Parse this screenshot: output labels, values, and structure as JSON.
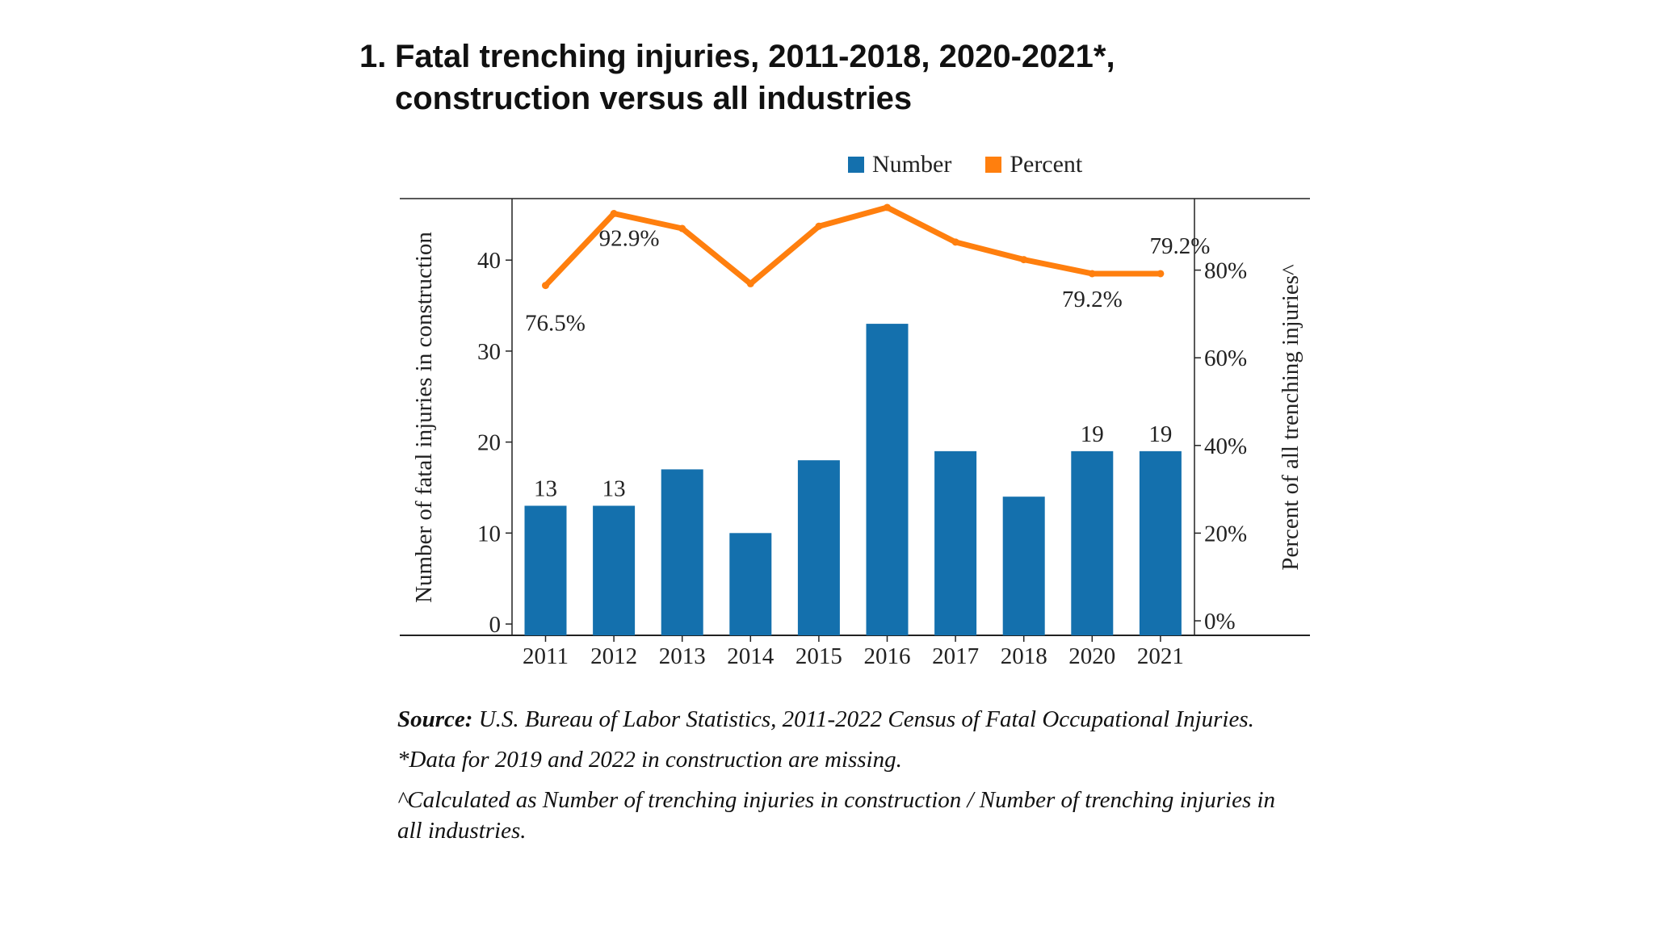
{
  "title": {
    "number": "1.",
    "line1": "Fatal trenching injuries, 2011-2018, 2020-2021*,",
    "line2": "construction versus all industries"
  },
  "legend": [
    {
      "label": "Number",
      "color": "#1470ad"
    },
    {
      "label": "Percent",
      "color": "#ff7f0e"
    }
  ],
  "chart_data": {
    "type": "bar",
    "categories": [
      "2011",
      "2012",
      "2013",
      "2014",
      "2015",
      "2016",
      "2017",
      "2018",
      "2020",
      "2021"
    ],
    "series": [
      {
        "name": "Number",
        "type": "bar",
        "axis": "left",
        "color": "#1470ad",
        "values": [
          13,
          13,
          17,
          10,
          18,
          33,
          19,
          14,
          19,
          19
        ]
      },
      {
        "name": "Percent",
        "type": "line",
        "axis": "right",
        "color": "#ff7f0e",
        "values": [
          76.5,
          92.9,
          89.5,
          76.9,
          90.0,
          94.3,
          86.4,
          82.4,
          79.2,
          79.2
        ]
      }
    ],
    "data_labels": {
      "bar": [
        {
          "index": 0,
          "text": "13"
        },
        {
          "index": 1,
          "text": "13"
        },
        {
          "index": 8,
          "text": "19"
        },
        {
          "index": 9,
          "text": "19"
        }
      ],
      "line": [
        {
          "index": 0,
          "text": "76.5%"
        },
        {
          "index": 1,
          "text": "92.9%"
        },
        {
          "index": 8,
          "text": "79.2%"
        },
        {
          "index": 9,
          "text": "79.2%"
        }
      ]
    },
    "ylabel": "Number of fatal injuries in construction",
    "y2label": "Percent of all trenching injuries^",
    "ylim": [
      0,
      48
    ],
    "y2lim": [
      0,
      100
    ],
    "yticks": [
      0,
      10,
      20,
      30,
      40
    ],
    "ytick_labels": [
      "0",
      "10",
      "20",
      "30",
      "40"
    ],
    "y2ticks": [
      0,
      20,
      40,
      60,
      80
    ],
    "y2tick_labels": [
      "0%",
      "20%",
      "40%",
      "60%",
      "80%"
    ],
    "grid": false,
    "legend_position": "top"
  },
  "notes": {
    "source_label": "Source:",
    "source_text": "U.S. Bureau of Labor Statistics, 2011-2022 Census of Fatal Occupational Injuries.",
    "missing": "*Data for 2019 and 2022 in construction are missing.",
    "calc": "^Calculated as Number of trenching injuries in construction / Number of trenching injuries in all industries."
  }
}
